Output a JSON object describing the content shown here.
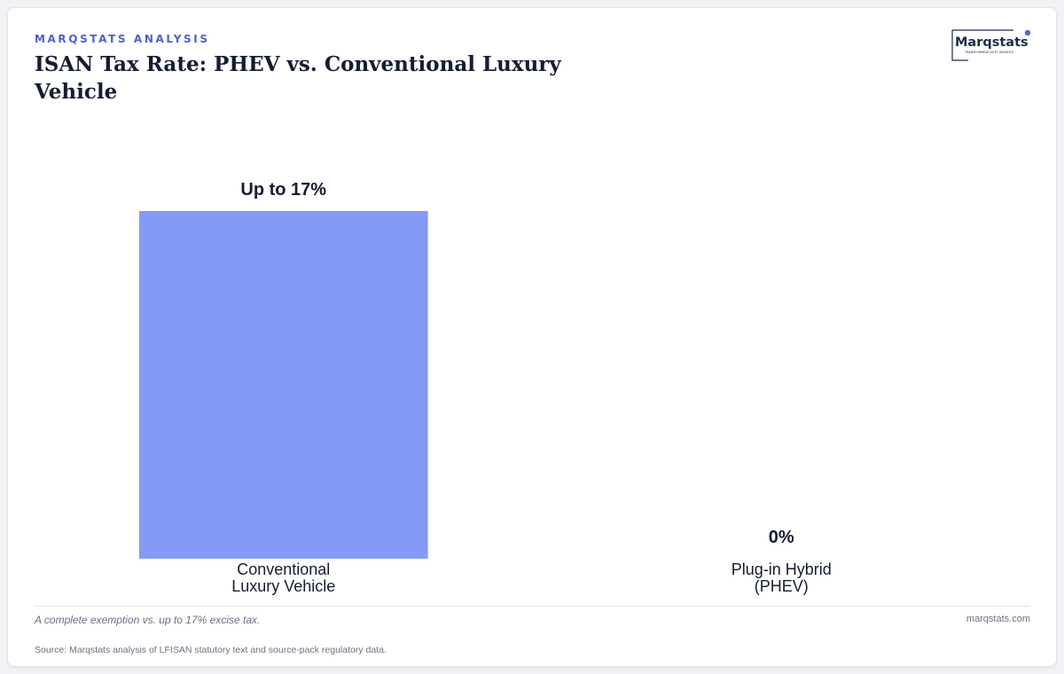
{
  "header": {
    "eyebrow": "MARQSTATS ANALYSIS",
    "title": "ISAN Tax Rate: PHEV vs. Conventional Luxury Vehicle"
  },
  "brand": {
    "logo_text": "Marqstats",
    "logo_tagline": "TRANSFORMING AUTO INSIGHTS",
    "logo_color": "#1e2a4a",
    "accent_color": "#5b66d6"
  },
  "colors": {
    "bar": "#8599f6",
    "text": "#151c33"
  },
  "chart_data": {
    "type": "bar",
    "categories": [
      "Conventional\nLuxury Vehicle",
      "Plug-in Hybrid\n(PHEV)"
    ],
    "values": [
      17,
      0
    ],
    "value_labels": [
      "Up to 17%",
      "0%"
    ],
    "ylim": [
      0,
      17
    ],
    "title": "ISAN Tax Rate: PHEV vs. Conventional Luxury Vehicle",
    "xlabel": "",
    "ylabel": "",
    "grid": false,
    "legend": "none"
  },
  "footer": {
    "caption": "A complete exemption vs. up to 17% excise tax.",
    "site": "marqstats.com",
    "source": "Source: Marqstats analysis of LFISAN statutory text and source-pack regulatory data."
  }
}
